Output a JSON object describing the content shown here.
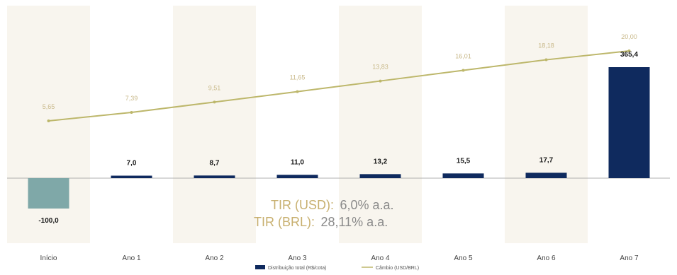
{
  "chart_data": {
    "type": "bar",
    "categories": [
      "Início",
      "Ano 1",
      "Ano 2",
      "Ano 3",
      "Ano 4",
      "Ano 5",
      "Ano 6",
      "Ano 7"
    ],
    "series": [
      {
        "name": "Distribuição total (R$/cota)",
        "type": "bar",
        "values": [
          -100.0,
          7.0,
          8.7,
          11.0,
          13.2,
          15.5,
          17.7,
          365.4
        ],
        "labels": [
          "-100,0",
          "7,0",
          "8,7",
          "11,0",
          "13,2",
          "15,5",
          "17,7",
          "365,4"
        ]
      },
      {
        "name": "Câmbio (USD/BRL)",
        "type": "line",
        "values": [
          5.65,
          7.39,
          9.51,
          11.65,
          13.83,
          16.01,
          18.18,
          20.0
        ],
        "labels": [
          "5,65",
          "7,39",
          "9,51",
          "11,65",
          "13,83",
          "16,01",
          "18,18",
          "20,00"
        ]
      }
    ],
    "annotations": [
      {
        "key": "TIR (USD):",
        "value": "6,0% a.a."
      },
      {
        "key": "TIR (BRL):",
        "value": "28,11% a.a."
      }
    ],
    "legend_position": "bottom",
    "colors": {
      "bar": "#0f2a5e",
      "bar_negative": "#7fa8a8",
      "line": "#bdb76b",
      "band": "#f8f5ee"
    }
  }
}
